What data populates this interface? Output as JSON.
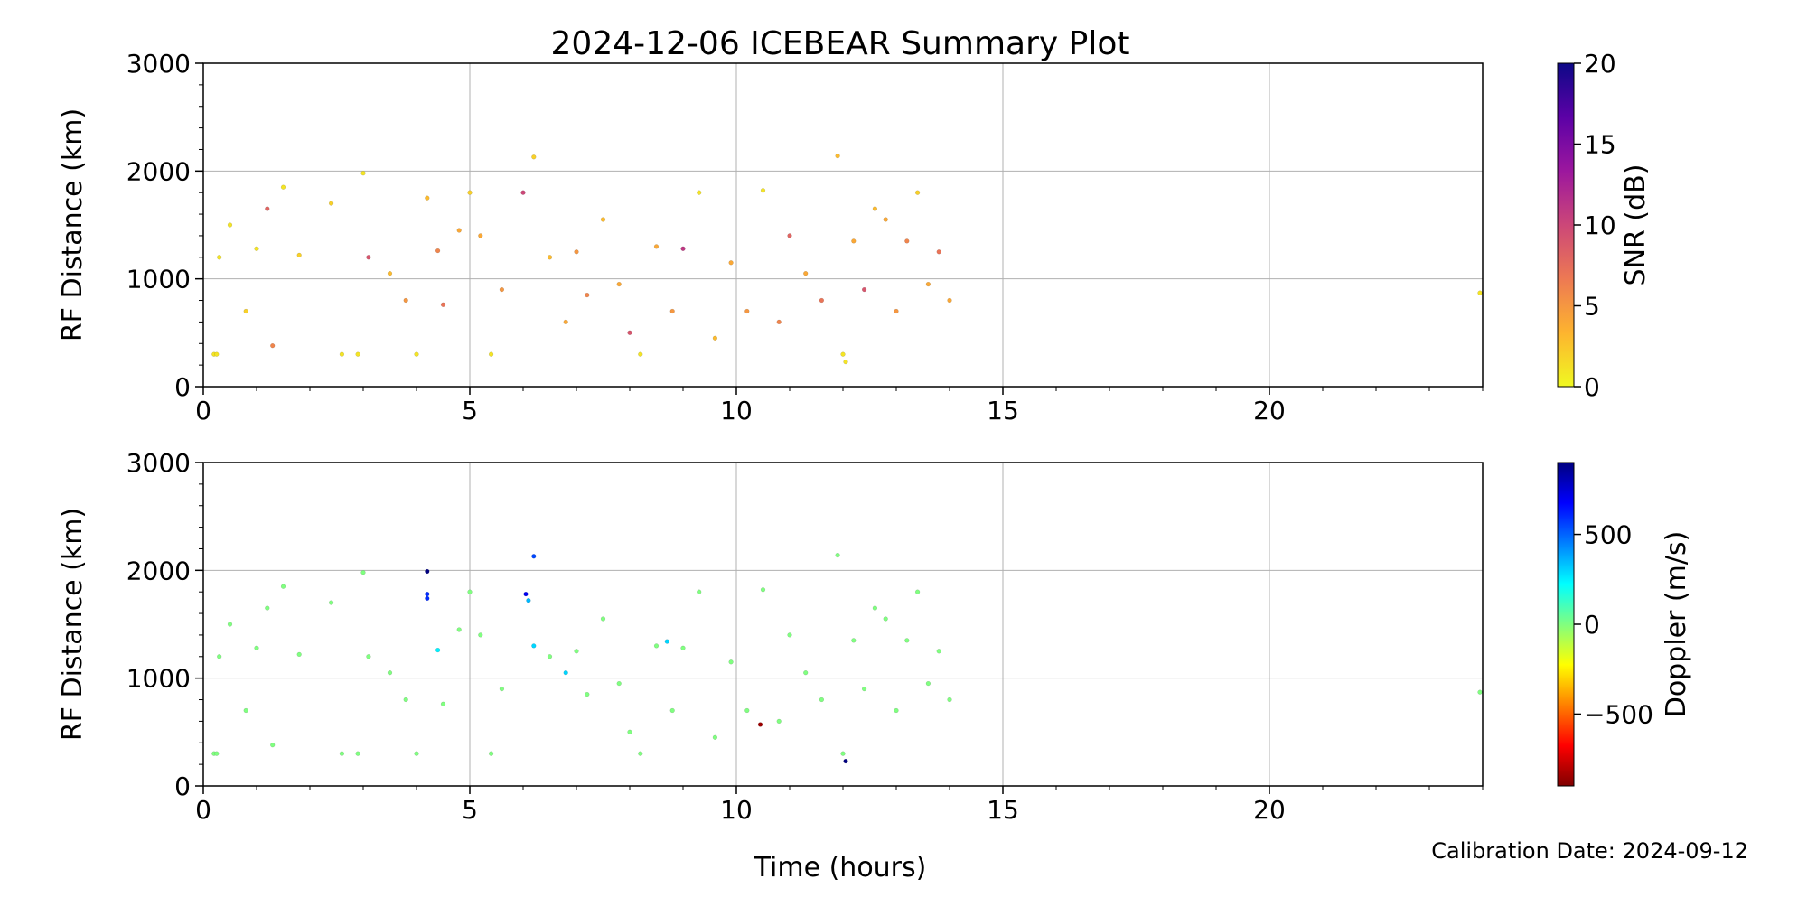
{
  "figure": {
    "title": "2024-12-06 ICEBEAR Summary Plot",
    "xlabel": "Time (hours)",
    "calibration_note": "Calibration Date: 2024-09-12"
  },
  "chart_data": [
    {
      "type": "scatter",
      "panel": "top",
      "xlabel": "",
      "ylabel": "RF Distance (km)",
      "xlim": [
        0,
        24
      ],
      "ylim": [
        0,
        3000
      ],
      "x_ticks": [
        0,
        5,
        10,
        15,
        20
      ],
      "y_ticks": [
        0,
        1000,
        2000,
        3000
      ],
      "grid": true,
      "colorbar": {
        "label": "SNR (dB)",
        "range": [
          0,
          20
        ],
        "ticks": [
          0,
          5,
          10,
          15,
          20
        ],
        "colormap": "plasma_r",
        "colors": [
          "#f0f921",
          "#fdb42f",
          "#ed7953",
          "#cc4778",
          "#9c179e",
          "#5c01a6",
          "#0d0887"
        ]
      },
      "data_summary": {
        "main_time_range_hours": [
          0.1,
          14.0
        ],
        "main_range_km": [
          250,
          2150
        ],
        "dense_band_km": [
          450,
          1600
        ],
        "isolated_points": [
          {
            "x": 23.95,
            "y": 870
          }
        ]
      },
      "points": [
        [
          0.2,
          300,
          1
        ],
        [
          0.25,
          300,
          1
        ],
        [
          0.3,
          1200,
          1
        ],
        [
          0.5,
          1500,
          1
        ],
        [
          0.8,
          700,
          2
        ],
        [
          1.0,
          1280,
          1
        ],
        [
          1.2,
          1650,
          8
        ],
        [
          1.3,
          380,
          6
        ],
        [
          1.5,
          1850,
          1
        ],
        [
          1.8,
          1220,
          2
        ],
        [
          2.4,
          1700,
          2
        ],
        [
          2.6,
          300,
          1
        ],
        [
          2.9,
          300,
          1
        ],
        [
          3.0,
          1980,
          1
        ],
        [
          3.1,
          1200,
          9
        ],
        [
          3.5,
          1050,
          3
        ],
        [
          3.8,
          800,
          5
        ],
        [
          4.0,
          300,
          1
        ],
        [
          4.2,
          1750,
          3
        ],
        [
          4.4,
          1260,
          6
        ],
        [
          4.5,
          760,
          7
        ],
        [
          4.8,
          1450,
          4
        ],
        [
          5.0,
          1800,
          2
        ],
        [
          5.2,
          1400,
          4
        ],
        [
          5.4,
          300,
          1
        ],
        [
          5.6,
          900,
          5
        ],
        [
          6.0,
          1800,
          10
        ],
        [
          6.2,
          2130,
          2
        ],
        [
          6.5,
          1200,
          3
        ],
        [
          6.8,
          600,
          4
        ],
        [
          7.0,
          1250,
          5
        ],
        [
          7.2,
          850,
          6
        ],
        [
          7.5,
          1550,
          3
        ],
        [
          7.8,
          950,
          4
        ],
        [
          8.0,
          500,
          9
        ],
        [
          8.2,
          300,
          1
        ],
        [
          8.5,
          1300,
          4
        ],
        [
          8.8,
          700,
          5
        ],
        [
          9.0,
          1280,
          11
        ],
        [
          9.3,
          1800,
          1
        ],
        [
          9.6,
          450,
          3
        ],
        [
          9.9,
          1150,
          4
        ],
        [
          10.2,
          700,
          5
        ],
        [
          10.5,
          1820,
          1
        ],
        [
          10.8,
          600,
          6
        ],
        [
          11.0,
          1400,
          8
        ],
        [
          11.3,
          1050,
          4
        ],
        [
          11.6,
          800,
          7
        ],
        [
          11.9,
          2140,
          3
        ],
        [
          12.0,
          300,
          1
        ],
        [
          12.05,
          230,
          1
        ],
        [
          12.2,
          1350,
          4
        ],
        [
          12.4,
          900,
          9
        ],
        [
          12.6,
          1650,
          3
        ],
        [
          12.8,
          1550,
          4
        ],
        [
          13.0,
          700,
          5
        ],
        [
          13.2,
          1350,
          6
        ],
        [
          13.4,
          1800,
          2
        ],
        [
          13.6,
          950,
          4
        ],
        [
          13.8,
          1250,
          7
        ],
        [
          14.0,
          800,
          4
        ],
        [
          23.95,
          870,
          1
        ]
      ]
    },
    {
      "type": "scatter",
      "panel": "bottom",
      "xlabel": "Time (hours)",
      "ylabel": "RF Distance (km)",
      "xlim": [
        0,
        24
      ],
      "ylim": [
        0,
        3000
      ],
      "x_ticks": [
        0,
        5,
        10,
        15,
        20
      ],
      "y_ticks": [
        0,
        1000,
        2000,
        3000
      ],
      "grid": true,
      "colorbar": {
        "label": "Doppler (m/s)",
        "range": [
          -900,
          900
        ],
        "ticks": [
          -500,
          0,
          500
        ],
        "colormap": "jet_r",
        "colors": [
          "#800000",
          "#ff0000",
          "#ff8000",
          "#ffff00",
          "#80ff80",
          "#00ffff",
          "#0080ff",
          "#0000ff",
          "#000080"
        ]
      },
      "data_summary": {
        "typical_doppler_ms": 0,
        "outliers": [
          {
            "x": 4.2,
            "y": 1990,
            "doppler": 900
          },
          {
            "x": 4.2,
            "y": 1780,
            "doppler": 600
          },
          {
            "x": 6.05,
            "y": 1780,
            "doppler": 700
          },
          {
            "x": 6.2,
            "y": 2130,
            "doppler": 550
          },
          {
            "x": 10.45,
            "y": 570,
            "doppler": -850
          },
          {
            "x": 12.05,
            "y": 230,
            "doppler": 900
          }
        ]
      },
      "points": [
        [
          0.2,
          300,
          0
        ],
        [
          0.25,
          300,
          0
        ],
        [
          0.3,
          1200,
          0
        ],
        [
          0.5,
          1500,
          0
        ],
        [
          0.8,
          700,
          0
        ],
        [
          1.0,
          1280,
          0
        ],
        [
          1.2,
          1650,
          0
        ],
        [
          1.3,
          380,
          0
        ],
        [
          1.5,
          1850,
          0
        ],
        [
          1.8,
          1220,
          0
        ],
        [
          2.4,
          1700,
          0
        ],
        [
          2.6,
          300,
          0
        ],
        [
          2.9,
          300,
          0
        ],
        [
          3.0,
          1980,
          0
        ],
        [
          3.1,
          1200,
          0
        ],
        [
          3.5,
          1050,
          0
        ],
        [
          3.8,
          800,
          0
        ],
        [
          4.0,
          300,
          0
        ],
        [
          4.2,
          1990,
          900
        ],
        [
          4.2,
          1780,
          600
        ],
        [
          4.2,
          1740,
          600
        ],
        [
          4.4,
          1260,
          250
        ],
        [
          4.5,
          760,
          0
        ],
        [
          4.8,
          1450,
          0
        ],
        [
          5.0,
          1800,
          0
        ],
        [
          5.2,
          1400,
          0
        ],
        [
          5.4,
          300,
          0
        ],
        [
          5.6,
          900,
          0
        ],
        [
          6.05,
          1780,
          700
        ],
        [
          6.1,
          1720,
          350
        ],
        [
          6.2,
          2130,
          550
        ],
        [
          6.2,
          1300,
          300
        ],
        [
          6.5,
          1200,
          0
        ],
        [
          6.8,
          1050,
          300
        ],
        [
          7.0,
          1250,
          0
        ],
        [
          7.2,
          850,
          0
        ],
        [
          7.5,
          1550,
          0
        ],
        [
          7.8,
          950,
          0
        ],
        [
          8.0,
          500,
          0
        ],
        [
          8.2,
          300,
          0
        ],
        [
          8.5,
          1300,
          0
        ],
        [
          8.7,
          1340,
          300
        ],
        [
          8.8,
          700,
          0
        ],
        [
          9.0,
          1280,
          0
        ],
        [
          9.3,
          1800,
          0
        ],
        [
          9.6,
          450,
          0
        ],
        [
          9.9,
          1150,
          0
        ],
        [
          10.2,
          700,
          0
        ],
        [
          10.45,
          570,
          -850
        ],
        [
          10.5,
          1820,
          0
        ],
        [
          10.8,
          600,
          0
        ],
        [
          11.0,
          1400,
          0
        ],
        [
          11.3,
          1050,
          0
        ],
        [
          11.6,
          800,
          0
        ],
        [
          11.9,
          2140,
          0
        ],
        [
          12.0,
          300,
          0
        ],
        [
          12.05,
          230,
          900
        ],
        [
          12.2,
          1350,
          0
        ],
        [
          12.4,
          900,
          0
        ],
        [
          12.6,
          1650,
          0
        ],
        [
          12.8,
          1550,
          0
        ],
        [
          13.0,
          700,
          0
        ],
        [
          13.2,
          1350,
          0
        ],
        [
          13.4,
          1800,
          0
        ],
        [
          13.6,
          950,
          0
        ],
        [
          13.8,
          1250,
          0
        ],
        [
          14.0,
          800,
          0
        ],
        [
          23.95,
          870,
          0
        ]
      ]
    }
  ]
}
